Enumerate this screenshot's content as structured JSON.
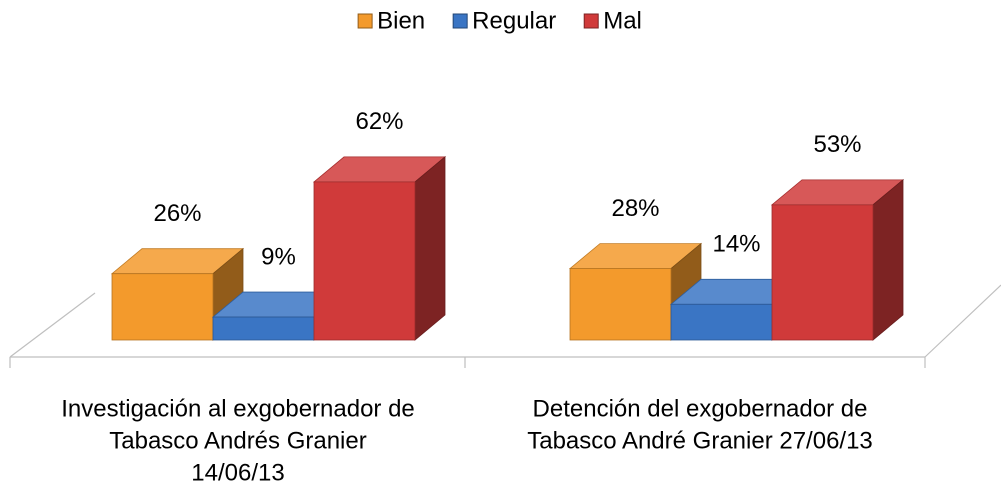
{
  "chart_data": {
    "type": "bar3d",
    "categories": [
      [
        "Investigación al exgobernador de",
        "Tabasco Andrés Granier",
        "14/06/13"
      ],
      [
        "Detención del exgobernador de",
        "Tabasco André Granier 27/06/13"
      ]
    ],
    "series": [
      {
        "name": "Bien",
        "color": "#f39a2c",
        "values": [
          26,
          28
        ],
        "value_labels": [
          "26%",
          "28%"
        ]
      },
      {
        "name": "Regular",
        "color": "#3a75c4",
        "values": [
          9,
          14
        ],
        "value_labels": [
          "9%",
          "14%"
        ]
      },
      {
        "name": "Mal",
        "color": "#d03a3a",
        "values": [
          62,
          53
        ],
        "value_labels": [
          "62%",
          "53%"
        ]
      }
    ],
    "ylim": [
      0,
      100
    ],
    "legend": "top"
  }
}
